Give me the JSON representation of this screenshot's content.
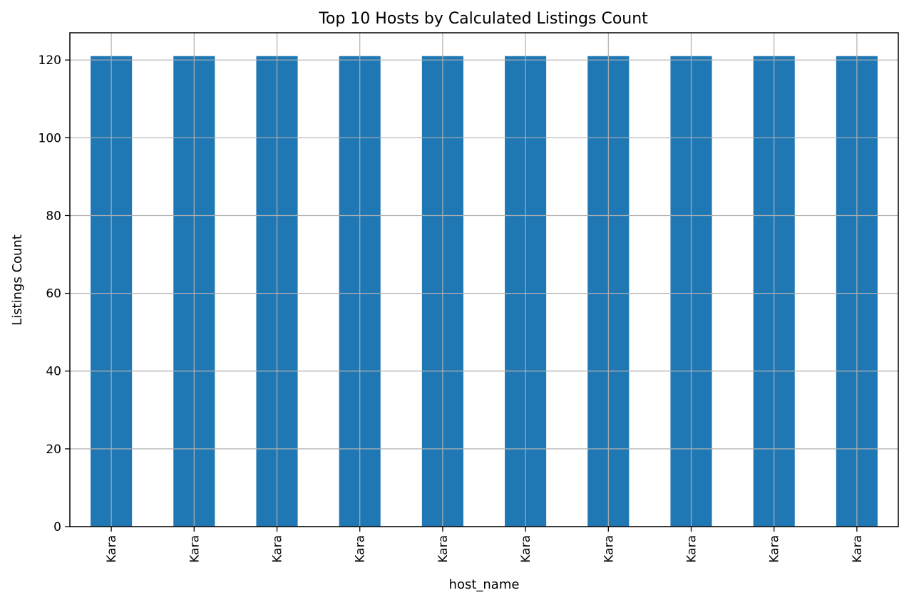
{
  "chart_data": {
    "type": "bar",
    "title": "Top 10 Hosts by Calculated Listings Count",
    "xlabel": "host_name",
    "ylabel": "Listings Count",
    "categories": [
      "Kara",
      "Kara",
      "Kara",
      "Kara",
      "Kara",
      "Kara",
      "Kara",
      "Kara",
      "Kara",
      "Kara"
    ],
    "values": [
      121,
      121,
      121,
      121,
      121,
      121,
      121,
      121,
      121,
      121
    ],
    "ylim": [
      0,
      127
    ],
    "yticks": [
      0,
      20,
      40,
      60,
      80,
      100,
      120
    ],
    "grid": true,
    "bar_color": "#1f77b4",
    "grid_color": "#b0b0b0",
    "x_tick_rotation_deg": 90
  }
}
